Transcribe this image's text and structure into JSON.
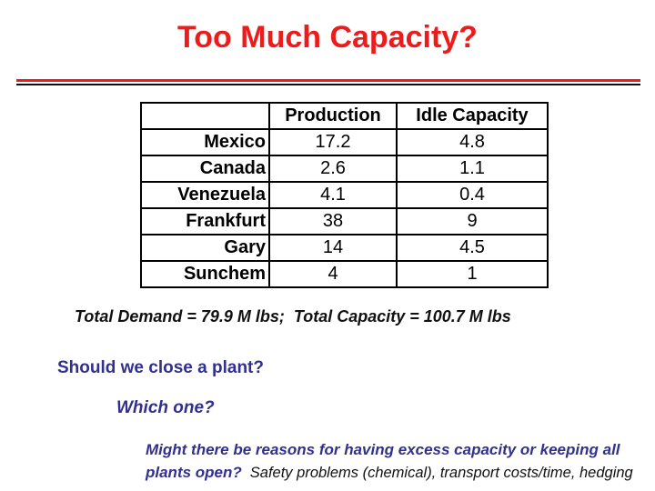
{
  "title": "Too Much Capacity?",
  "colors": {
    "accent_red": "#EC1C1C",
    "text_blue": "#32308F",
    "text_black": "#111111"
  },
  "table": {
    "columns": [
      "",
      "Production",
      "Idle Capacity"
    ],
    "rows": [
      {
        "label": "Mexico",
        "production": "17.2",
        "idle": "4.8"
      },
      {
        "label": "Canada",
        "production": "2.6",
        "idle": "1.1"
      },
      {
        "label": "Venezuela",
        "production": "4.1",
        "idle": "0.4"
      },
      {
        "label": "Frankfurt",
        "production": "38",
        "idle": "9"
      },
      {
        "label": "Gary",
        "production": "14",
        "idle": "4.5"
      },
      {
        "label": "Sunchem",
        "production": "4",
        "idle": "1"
      }
    ]
  },
  "summary": "Total Demand = 79.9 M lbs;  Total Capacity = 100.7 M lbs",
  "questions": {
    "q1": "Should we close a plant?",
    "q2": "Which one?",
    "q3_line1": "Might there be reasons for having excess capacity or keeping all",
    "q3_line2": "plants open?",
    "q3_answer": "Safety problems (chemical), transport costs/time, hedging"
  }
}
